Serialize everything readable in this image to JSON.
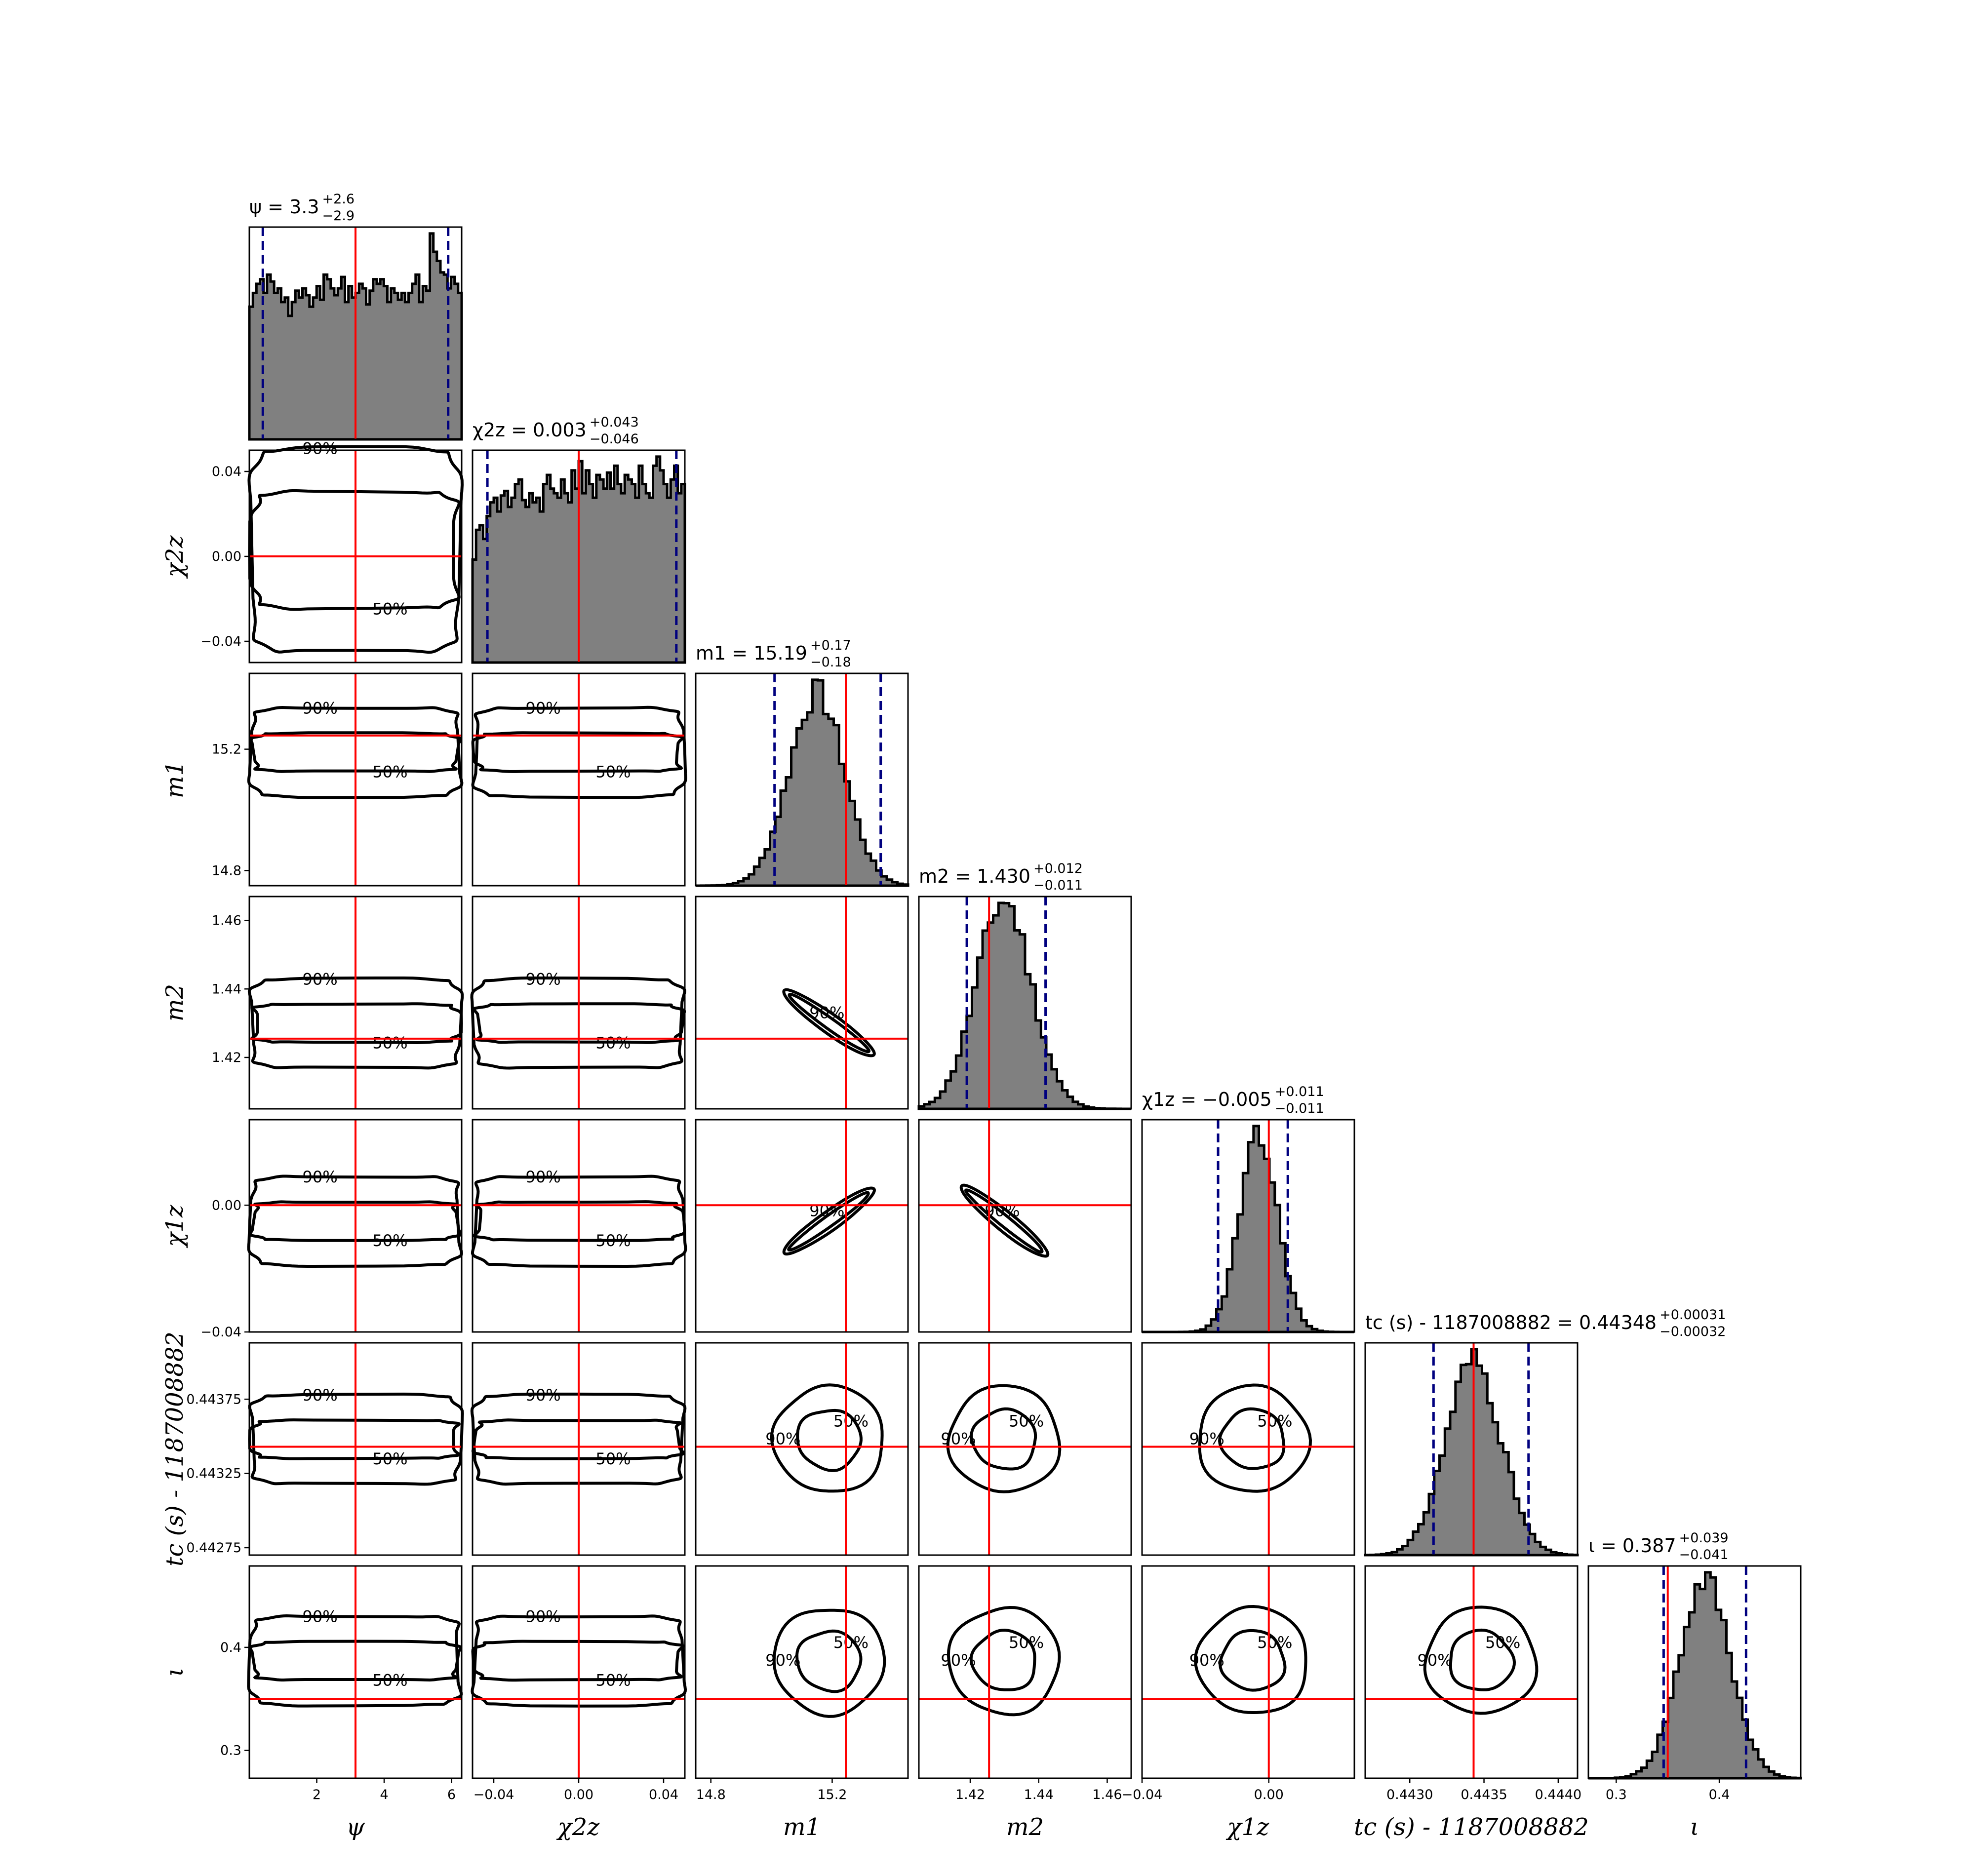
{
  "chart_data": {
    "type": "corner",
    "params": [
      {
        "key": "psi",
        "label": "ψ",
        "range": [
          0.0,
          6.3
        ],
        "truth": 3.15,
        "median": 3.3,
        "lo": 0.4,
        "hi": 5.9,
        "ticks": [
          {
            "v": 2,
            "t": "2"
          },
          {
            "v": 4,
            "t": "4"
          },
          {
            "v": 6,
            "t": "6"
          }
        ],
        "title": "ψ = 3.3",
        "title_sup": "+2.6",
        "title_sub": "−2.9",
        "hist": [
          0.58,
          0.64,
          0.68,
          0.7,
          0.64,
          0.72,
          0.69,
          0.64,
          0.66,
          0.6,
          0.62,
          0.54,
          0.6,
          0.65,
          0.62,
          0.66,
          0.63,
          0.58,
          0.62,
          0.67,
          0.61,
          0.72,
          0.7,
          0.66,
          0.63,
          0.66,
          0.71,
          0.6,
          0.67,
          0.62,
          0.64,
          0.68,
          0.66,
          0.59,
          0.65,
          0.7,
          0.68,
          0.7,
          0.67,
          0.6,
          0.66,
          0.64,
          0.61,
          0.64,
          0.6,
          0.64,
          0.68,
          0.72,
          0.6,
          0.67,
          0.65,
          0.9,
          0.82,
          0.78,
          0.73,
          0.72,
          0.66,
          0.71,
          0.68,
          0.64
        ]
      },
      {
        "key": "chi2z",
        "label": "χ2z",
        "range": [
          -0.05,
          0.05
        ],
        "truth": 0.0,
        "median": 0.003,
        "lo": -0.043,
        "hi": 0.046,
        "ticks": [
          {
            "v": -0.04,
            "t": "−0.04"
          },
          {
            "v": 0.0,
            "t": "0.00"
          },
          {
            "v": 0.04,
            "t": "0.04"
          }
        ],
        "title": "χ2z = 0.003",
        "title_sup": "+0.043",
        "title_sub": "−0.046",
        "hist": [
          0.45,
          0.58,
          0.6,
          0.54,
          0.64,
          0.7,
          0.72,
          0.66,
          0.73,
          0.75,
          0.68,
          0.72,
          0.78,
          0.8,
          0.71,
          0.68,
          0.74,
          0.7,
          0.72,
          0.66,
          0.78,
          0.82,
          0.76,
          0.74,
          0.72,
          0.8,
          0.74,
          0.7,
          0.84,
          0.76,
          0.88,
          0.74,
          0.84,
          0.78,
          0.72,
          0.82,
          0.8,
          0.76,
          0.83,
          0.76,
          0.86,
          0.78,
          0.74,
          0.82,
          0.8,
          0.78,
          0.72,
          0.86,
          0.78,
          0.74,
          0.72,
          0.86,
          0.9,
          0.84,
          0.78,
          0.72,
          0.8,
          0.86,
          0.74,
          0.78
        ]
      },
      {
        "key": "m1",
        "label": "m1",
        "range": [
          14.75,
          15.45
        ],
        "truth": 15.245,
        "median": 15.19,
        "lo": 15.01,
        "hi": 15.36,
        "ticks": [
          {
            "v": 14.8,
            "t": "14.8"
          },
          {
            "v": 15.2,
            "t": "15.2"
          }
        ],
        "title": "m1 = 15.19",
        "title_sup": "+0.17",
        "title_sub": "−0.18",
        "hist": []
      },
      {
        "key": "m2",
        "label": "m2",
        "range": [
          1.405,
          1.467
        ],
        "truth": 1.4255,
        "median": 1.43,
        "lo": 1.419,
        "hi": 1.442,
        "ticks": [
          {
            "v": 1.42,
            "t": "1.42"
          },
          {
            "v": 1.44,
            "t": "1.44"
          },
          {
            "v": 1.46,
            "t": "1.46"
          }
        ],
        "title": "m2 = 1.430",
        "title_sup": "+0.012",
        "title_sub": "−0.011",
        "hist": []
      },
      {
        "key": "chi1z",
        "label": "χ1z",
        "range": [
          -0.04,
          0.027
        ],
        "truth": 0.0,
        "median": -0.005,
        "lo": -0.016,
        "hi": 0.006,
        "ticks": [
          {
            "v": -0.04,
            "t": "−0.04"
          },
          {
            "v": 0.0,
            "t": "0.00"
          }
        ],
        "title": "χ1z = −0.005",
        "title_sup": "+0.011",
        "title_sub": "−0.011",
        "hist": []
      },
      {
        "key": "tc",
        "label": "tc (s) - 1187008882",
        "range": [
          0.4427,
          0.44413
        ],
        "truth": 0.44343,
        "median": 0.44348,
        "lo": 0.44316,
        "hi": 0.4438,
        "ticks": [
          {
            "v": 0.443,
            "t": "0.4430"
          },
          {
            "v": 0.4435,
            "t": "0.4435"
          },
          {
            "v": 0.444,
            "t": "0.4440"
          }
        ],
        "yticks": [
          {
            "v": 0.44375,
            "t": "0.44375"
          },
          {
            "v": 0.44325,
            "t": "0.44325"
          },
          {
            "v": 0.44275,
            "t": "0.44275"
          }
        ],
        "title": "tc (s) - 1187008882 = 0.44348",
        "title_sup": "+0.00031",
        "title_sub": "−0.00032",
        "hist": []
      },
      {
        "key": "iota",
        "label": "ι",
        "range": [
          0.273,
          0.479
        ],
        "truth": 0.35,
        "median": 0.387,
        "lo": 0.346,
        "hi": 0.426,
        "ticks": [
          {
            "v": 0.3,
            "t": "0.3"
          },
          {
            "v": 0.4,
            "t": "0.4"
          }
        ],
        "title": "ι = 0.387",
        "title_sup": "+0.039",
        "title_sub": "−0.041",
        "hist": []
      }
    ],
    "contour_levels": [
      "50%",
      "90%"
    ]
  }
}
